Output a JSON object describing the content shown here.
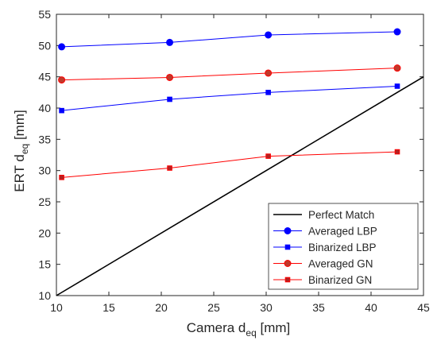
{
  "chart_data": {
    "type": "line",
    "xlim": [
      10,
      45
    ],
    "ylim": [
      10,
      55
    ],
    "xticks": [
      10,
      15,
      20,
      25,
      30,
      35,
      40,
      45
    ],
    "yticks": [
      10,
      15,
      20,
      25,
      30,
      35,
      40,
      45,
      50,
      55
    ],
    "xlabel": {
      "prefix": "Camera d",
      "sub": "eq",
      "suffix": " [mm]"
    },
    "ylabel": {
      "prefix": "ERT d",
      "sub": "eq",
      "suffix": " [mm]"
    },
    "grid": false,
    "legend_position": "bottom-right",
    "series": [
      {
        "name": "Perfect Match",
        "x": [
          10,
          45
        ],
        "y": [
          10,
          45
        ],
        "color": "#000000",
        "marker": "none"
      },
      {
        "name": "Averaged LBP",
        "x": [
          10.5,
          20.8,
          30.2,
          42.5
        ],
        "y": [
          49.8,
          50.5,
          51.7,
          52.2
        ],
        "color": "#0000ff",
        "marker": "circle"
      },
      {
        "name": "Binarized LBP",
        "x": [
          10.5,
          20.8,
          30.2,
          42.5
        ],
        "y": [
          39.6,
          41.4,
          42.5,
          43.5
        ],
        "color": "#0000ff",
        "marker": "square"
      },
      {
        "name": "Averaged GN",
        "x": [
          10.5,
          20.8,
          30.2,
          42.5
        ],
        "y": [
          44.5,
          44.9,
          45.6,
          46.4
        ],
        "color": "#ff0000",
        "marker": "circle"
      },
      {
        "name": "Binarized GN",
        "x": [
          10.5,
          20.8,
          30.2,
          42.5
        ],
        "y": [
          28.9,
          30.4,
          32.3,
          33.0
        ],
        "color": "#ff0000",
        "marker": "square"
      }
    ],
    "marker_fill": {
      "circle_blue": "#0000ff",
      "circle_red": "#ff0000",
      "square_red": "#b22222"
    }
  }
}
